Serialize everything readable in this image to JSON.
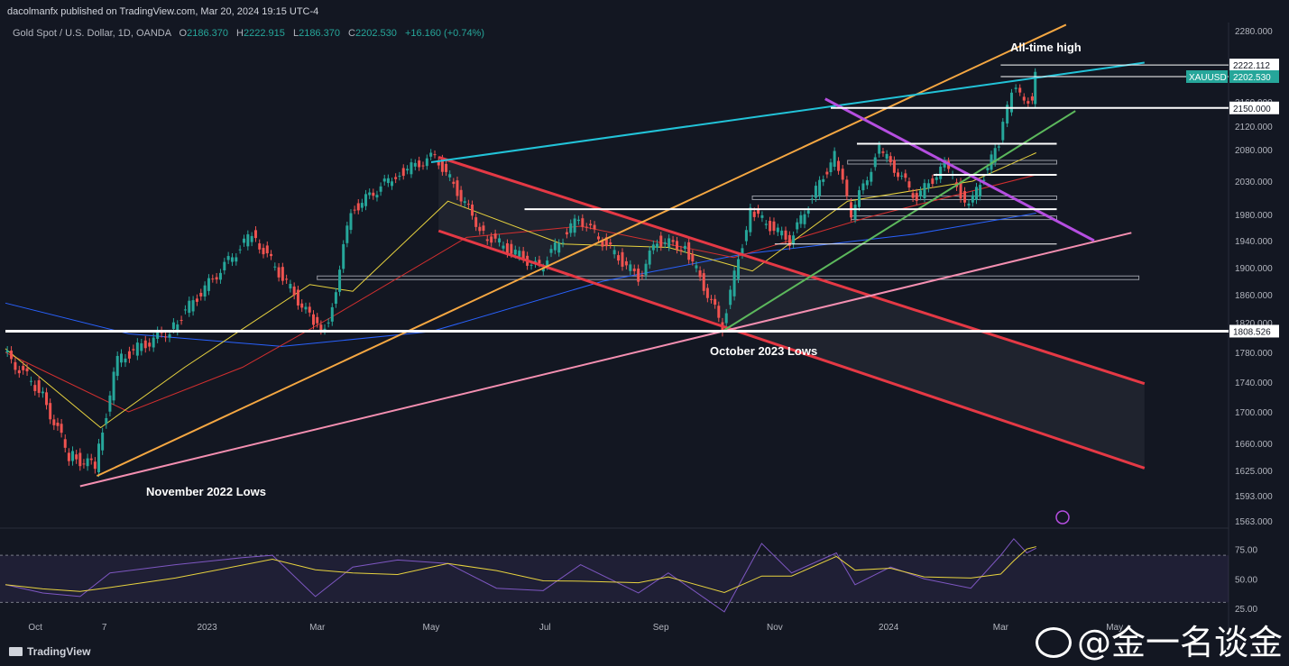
{
  "header": {
    "published": "dacolmanfx published on TradingView.com, Mar 20, 2024 19:15 UTC-4",
    "symbol": "Gold Spot / U.S. Dollar, 1D, OANDA",
    "open_label": "O",
    "open": "2186.370",
    "high_label": "H",
    "high": "2222.915",
    "low_label": "L",
    "low": "2186.370",
    "close_label": "C",
    "close": "2202.530",
    "change": "+16.160 (+0.74%)"
  },
  "brand": "TradingView",
  "watermark": "@金一名谈金",
  "colors": {
    "background": "#131722",
    "up": "#26a69a",
    "down": "#ef5350",
    "cyan_trend": "#22c3d8",
    "orange_trend": "#f5a742",
    "green_trend": "#5cb85c",
    "purple_trend": "#b54ee0",
    "pink_trend": "#f48fb1",
    "red_channel": "#e53945",
    "ma_yellow": "#e8d33f",
    "ma_red": "#d32f2f",
    "ma_blue": "#2962ff",
    "rsi": "#7e57c2"
  },
  "chart_data": {
    "type": "candlestick",
    "title": "Gold Spot / U.S. Dollar, 1D, OANDA",
    "x_tick_labels": [
      "Oct",
      "7",
      "2023",
      "Mar",
      "May",
      "Jul",
      "Sep",
      "Nov",
      "2024",
      "Mar",
      "May"
    ],
    "x_ticks": [
      "2022-10-01",
      "2022-11-07",
      "2023-01-01",
      "2023-03-01",
      "2023-05-01",
      "2023-07-01",
      "2023-09-01",
      "2023-11-01",
      "2024-01-01",
      "2024-03-01",
      "2024-05-01"
    ],
    "y_ticks": [
      1563,
      1593,
      1625,
      1660,
      1700,
      1740,
      1780,
      1820,
      1860,
      1900,
      1940,
      1980,
      2030,
      2080,
      2120,
      2160,
      2280
    ],
    "y_tick_labels": [
      "1563.000",
      "1593.000",
      "1625.000",
      "1660.000",
      "1700.000",
      "1740.000",
      "1780.000",
      "1820.000",
      "1860.000",
      "1900.000",
      "1940.000",
      "1980.000",
      "2030.000",
      "2080.000",
      "2120.000",
      "2160.000",
      "2280.000"
    ],
    "ylim": [
      1555,
      2295
    ],
    "price_path": [
      [
        "2022-09-15",
        1780
      ],
      [
        "2022-10-04",
        1730
      ],
      [
        "2022-10-20",
        1645
      ],
      [
        "2022-11-03",
        1630
      ],
      [
        "2022-11-15",
        1770
      ],
      [
        "2022-12-13",
        1810
      ],
      [
        "2023-01-26",
        1950
      ],
      [
        "2023-02-28",
        1820
      ],
      [
        "2023-03-08",
        1815
      ],
      [
        "2023-03-20",
        1985
      ],
      [
        "2023-04-13",
        2040
      ],
      [
        "2023-05-04",
        2070
      ],
      [
        "2023-05-30",
        1950
      ],
      [
        "2023-06-29",
        1900
      ],
      [
        "2023-07-20",
        1975
      ],
      [
        "2023-08-21",
        1885
      ],
      [
        "2023-08-31",
        1940
      ],
      [
        "2023-09-15",
        1930
      ],
      [
        "2023-10-05",
        1815
      ],
      [
        "2023-10-20",
        1985
      ],
      [
        "2023-11-10",
        1940
      ],
      [
        "2023-12-04",
        2070
      ],
      [
        "2023-12-13",
        1980
      ],
      [
        "2023-12-28",
        2080
      ],
      [
        "2024-01-17",
        2005
      ],
      [
        "2024-02-01",
        2055
      ],
      [
        "2024-02-14",
        1990
      ],
      [
        "2024-03-01",
        2090
      ],
      [
        "2024-03-08",
        2180
      ],
      [
        "2024-03-19",
        2160
      ],
      [
        "2024-03-20",
        2202.53
      ]
    ],
    "horizontal_levels": [
      {
        "value": 2222.112,
        "label": "2222.112"
      },
      {
        "value": 2202.53,
        "label": "XAUUSD",
        "price_label": "2202.530"
      },
      {
        "value": 2150.0,
        "label": "2150.000"
      },
      {
        "value": 1808.526,
        "label": "1808.526"
      }
    ],
    "annotations": [
      "All-time high",
      "October 2023 Lows",
      "November 2022 Lows"
    ],
    "rsi": {
      "y_ticks": [
        25,
        50,
        75
      ],
      "y_tick_labels": [
        "25.00",
        "50.00",
        "75.00"
      ],
      "ylim": [
        15,
        90
      ],
      "band": [
        30,
        70
      ],
      "path": [
        [
          "2022-09-15",
          45
        ],
        [
          "2022-10-05",
          38
        ],
        [
          "2022-10-25",
          35
        ],
        [
          "2022-11-10",
          55
        ],
        [
          "2022-12-15",
          62
        ],
        [
          "2023-01-20",
          68
        ],
        [
          "2023-02-05",
          70
        ],
        [
          "2023-02-28",
          35
        ],
        [
          "2023-03-20",
          60
        ],
        [
          "2023-04-13",
          66
        ],
        [
          "2023-05-10",
          63
        ],
        [
          "2023-06-05",
          42
        ],
        [
          "2023-06-30",
          40
        ],
        [
          "2023-07-20",
          62
        ],
        [
          "2023-08-20",
          38
        ],
        [
          "2023-09-05",
          55
        ],
        [
          "2023-10-05",
          22
        ],
        [
          "2023-10-25",
          80
        ],
        [
          "2023-11-10",
          55
        ],
        [
          "2023-12-04",
          72
        ],
        [
          "2023-12-14",
          45
        ],
        [
          "2024-01-02",
          60
        ],
        [
          "2024-01-20",
          50
        ],
        [
          "2024-02-14",
          42
        ],
        [
          "2024-03-01",
          70
        ],
        [
          "2024-03-08",
          84
        ],
        [
          "2024-03-15",
          72
        ],
        [
          "2024-03-20",
          76
        ]
      ]
    }
  }
}
